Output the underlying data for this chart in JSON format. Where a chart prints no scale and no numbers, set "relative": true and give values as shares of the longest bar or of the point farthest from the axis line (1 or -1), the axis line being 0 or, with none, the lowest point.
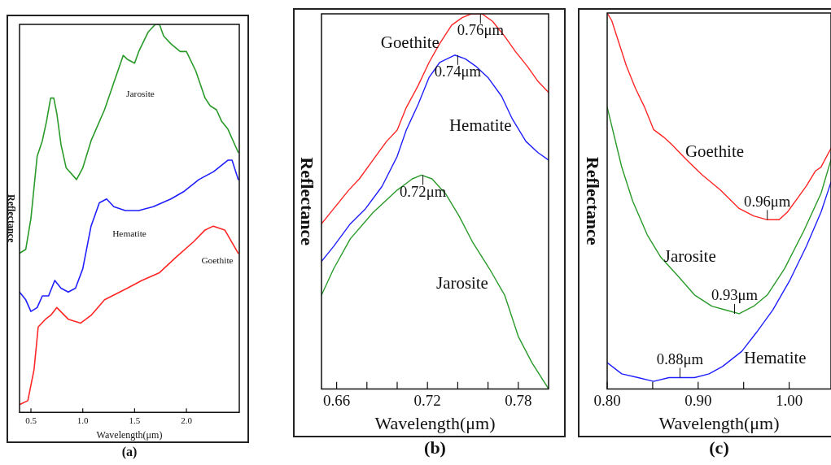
{
  "chart_data": [
    {
      "type": "line",
      "title": "(a)",
      "xlabel": "Wavelength(μm)",
      "ylabel": "Reflectance",
      "relative": true,
      "xlim": [
        0.39,
        2.51
      ],
      "xticks": [
        0.5,
        {
          "value": 1.0,
          "label": "1.0"
        },
        1.5,
        {
          "value": 2.0,
          "label": "2.0"
        }
      ],
      "grid": false,
      "legend": false,
      "marker": "none",
      "line_style": "solid",
      "series": [
        {
          "name": "Jarosite",
          "color": "#2a9a2a",
          "x": [
            0.39,
            0.45,
            0.5,
            0.56,
            0.61,
            0.65,
            0.69,
            0.72,
            0.75,
            0.79,
            0.84,
            0.94,
            1.0,
            1.08,
            1.21,
            1.3,
            1.39,
            1.43,
            1.5,
            1.54,
            1.63,
            1.7,
            1.74,
            1.78,
            1.85,
            1.94,
            2.0,
            2.09,
            2.18,
            2.23,
            2.29,
            2.34,
            2.4,
            2.5
          ],
          "values": [
            0.41,
            0.42,
            0.5,
            0.66,
            0.7,
            0.75,
            0.81,
            0.81,
            0.77,
            0.69,
            0.63,
            0.6,
            0.63,
            0.7,
            0.78,
            0.85,
            0.92,
            0.91,
            0.9,
            0.93,
            0.98,
            1,
            1,
            0.97,
            0.95,
            0.93,
            0.93,
            0.88,
            0.81,
            0.79,
            0.78,
            0.75,
            0.73,
            0.67
          ]
        },
        {
          "name": "Hematite",
          "color": "#2020ff",
          "x": [
            0.39,
            0.45,
            0.5,
            0.56,
            0.61,
            0.67,
            0.73,
            0.79,
            0.86,
            0.93,
            1.0,
            1.08,
            1.16,
            1.23,
            1.3,
            1.41,
            1.54,
            1.68,
            1.85,
            1.98,
            2.12,
            2.26,
            2.4,
            2.44,
            2.5
          ],
          "values": [
            0.31,
            0.29,
            0.26,
            0.27,
            0.3,
            0.3,
            0.34,
            0.32,
            0.31,
            0.32,
            0.37,
            0.48,
            0.54,
            0.55,
            0.53,
            0.52,
            0.52,
            0.53,
            0.55,
            0.57,
            0.6,
            0.62,
            0.65,
            0.65,
            0.6
          ]
        },
        {
          "name": "Goethite",
          "color": "#ff2626",
          "x": [
            0.39,
            0.47,
            0.53,
            0.57,
            0.64,
            0.69,
            0.75,
            0.86,
            0.98,
            1.08,
            1.21,
            1.43,
            1.57,
            1.74,
            1.9,
            2.07,
            2.18,
            2.26,
            2.37,
            2.5
          ],
          "values": [
            0.02,
            0.03,
            0.11,
            0.22,
            0.24,
            0.25,
            0.27,
            0.24,
            0.23,
            0.25,
            0.29,
            0.32,
            0.34,
            0.36,
            0.4,
            0.44,
            0.47,
            0.48,
            0.47,
            0.41
          ]
        }
      ]
    },
    {
      "type": "line",
      "title": "(b)",
      "xlabel": "Wavelength(μm)",
      "ylabel": "Reflectance",
      "relative": true,
      "xlim": [
        0.65,
        0.8
      ],
      "xticks": [
        0.66,
        {
          "value": 0.68,
          "label": null
        },
        {
          "value": 0.7,
          "label": null
        },
        0.72,
        {
          "value": 0.74,
          "label": null
        },
        {
          "value": 0.76,
          "label": null
        },
        0.78
      ],
      "grid": false,
      "legend": false,
      "marker": "none",
      "line_style": "solid",
      "annotations": [
        {
          "text": "0.76μm",
          "x": 0.755,
          "y": 1
        },
        {
          "text": "0.74μm",
          "x": 0.74,
          "y": 0.89
        },
        {
          "text": "0.72μm",
          "x": 0.717,
          "y": 0.57
        }
      ],
      "series": [
        {
          "name": "Goethite",
          "color": "#ff2626",
          "x": [
            0.65,
            0.658,
            0.668,
            0.675,
            0.684,
            0.693,
            0.7,
            0.706,
            0.714,
            0.721,
            0.728,
            0.736,
            0.743,
            0.749,
            0.756,
            0.763,
            0.771,
            0.778,
            0.786,
            0.793,
            0.8
          ],
          "values": [
            0.44,
            0.48,
            0.53,
            0.56,
            0.61,
            0.66,
            0.69,
            0.75,
            0.81,
            0.87,
            0.92,
            0.97,
            0.99,
            1,
            1,
            0.98,
            0.94,
            0.9,
            0.86,
            0.82,
            0.79
          ]
        },
        {
          "name": "Hematite",
          "color": "#2020ff",
          "x": [
            0.65,
            0.658,
            0.669,
            0.679,
            0.69,
            0.7,
            0.706,
            0.714,
            0.721,
            0.728,
            0.738,
            0.745,
            0.752,
            0.76,
            0.769,
            0.776,
            0.785,
            0.793,
            0.8
          ],
          "values": [
            0.34,
            0.38,
            0.44,
            0.48,
            0.54,
            0.62,
            0.69,
            0.76,
            0.83,
            0.87,
            0.89,
            0.88,
            0.86,
            0.83,
            0.78,
            0.72,
            0.66,
            0.63,
            0.61
          ]
        },
        {
          "name": "Jarosite",
          "color": "#2a9a2a",
          "x": [
            0.65,
            0.658,
            0.669,
            0.684,
            0.7,
            0.71,
            0.716,
            0.723,
            0.732,
            0.741,
            0.75,
            0.761,
            0.771,
            0.78,
            0.789,
            0.8
          ],
          "values": [
            0.25,
            0.32,
            0.4,
            0.47,
            0.53,
            0.56,
            0.57,
            0.56,
            0.52,
            0.46,
            0.39,
            0.32,
            0.25,
            0.14,
            0.07,
            0
          ]
        }
      ]
    },
    {
      "type": "line",
      "title": "(c)",
      "xlabel": "Wavelength(μm)",
      "ylabel": "Reflectance",
      "relative": true,
      "xlim": [
        0.8,
        1.046
      ],
      "xticks": [
        {
          "value": 0.8,
          "label": "0.80"
        },
        {
          "value": 0.85,
          "label": null
        },
        {
          "value": 0.9,
          "label": "0.90"
        },
        {
          "value": 0.95,
          "label": null
        },
        {
          "value": 1.0,
          "label": "1.00"
        }
      ],
      "grid": false,
      "legend": false,
      "marker": "none",
      "line_style": "solid",
      "annotations": [
        {
          "text": "0.96μm",
          "x": 0.976,
          "y": 0.45
        },
        {
          "text": "0.93μm",
          "x": 0.94,
          "y": 0.2
        },
        {
          "text": "0.88μm",
          "x": 0.88,
          "y": 0.03
        }
      ],
      "series": [
        {
          "name": "Goethite",
          "color": "#ff2626",
          "x": [
            0.8,
            0.805,
            0.813,
            0.821,
            0.831,
            0.841,
            0.851,
            0.862,
            0.871,
            0.887,
            0.904,
            0.924,
            0.945,
            0.961,
            0.976,
            0.989,
            0.998,
            1.01,
            1.019,
            1.029,
            1.035,
            1.046
          ],
          "values": [
            1,
            0.98,
            0.92,
            0.86,
            0.8,
            0.75,
            0.69,
            0.67,
            0.65,
            0.61,
            0.57,
            0.53,
            0.48,
            0.46,
            0.45,
            0.45,
            0.47,
            0.51,
            0.54,
            0.58,
            0.59,
            0.64
          ]
        },
        {
          "name": "Jarosite",
          "color": "#2a9a2a",
          "x": [
            0.8,
            0.807,
            0.816,
            0.828,
            0.844,
            0.859,
            0.878,
            0.896,
            0.915,
            0.93,
            0.945,
            0.961,
            0.976,
            0.995,
            1.016,
            1.035,
            1.046
          ],
          "values": [
            0.75,
            0.68,
            0.59,
            0.5,
            0.41,
            0.35,
            0.3,
            0.25,
            0.22,
            0.21,
            0.2,
            0.22,
            0.25,
            0.32,
            0.42,
            0.52,
            0.61
          ]
        },
        {
          "name": "Hematite",
          "color": "#2020ff",
          "x": [
            0.8,
            0.816,
            0.834,
            0.851,
            0.868,
            0.881,
            0.896,
            0.912,
            0.927,
            0.948,
            0.964,
            0.982,
            1.001,
            1.019,
            1.035,
            1.046
          ],
          "values": [
            0.07,
            0.04,
            0.03,
            0.02,
            0.03,
            0.03,
            0.03,
            0.04,
            0.06,
            0.1,
            0.15,
            0.21,
            0.29,
            0.38,
            0.47,
            0.55
          ]
        }
      ]
    }
  ]
}
